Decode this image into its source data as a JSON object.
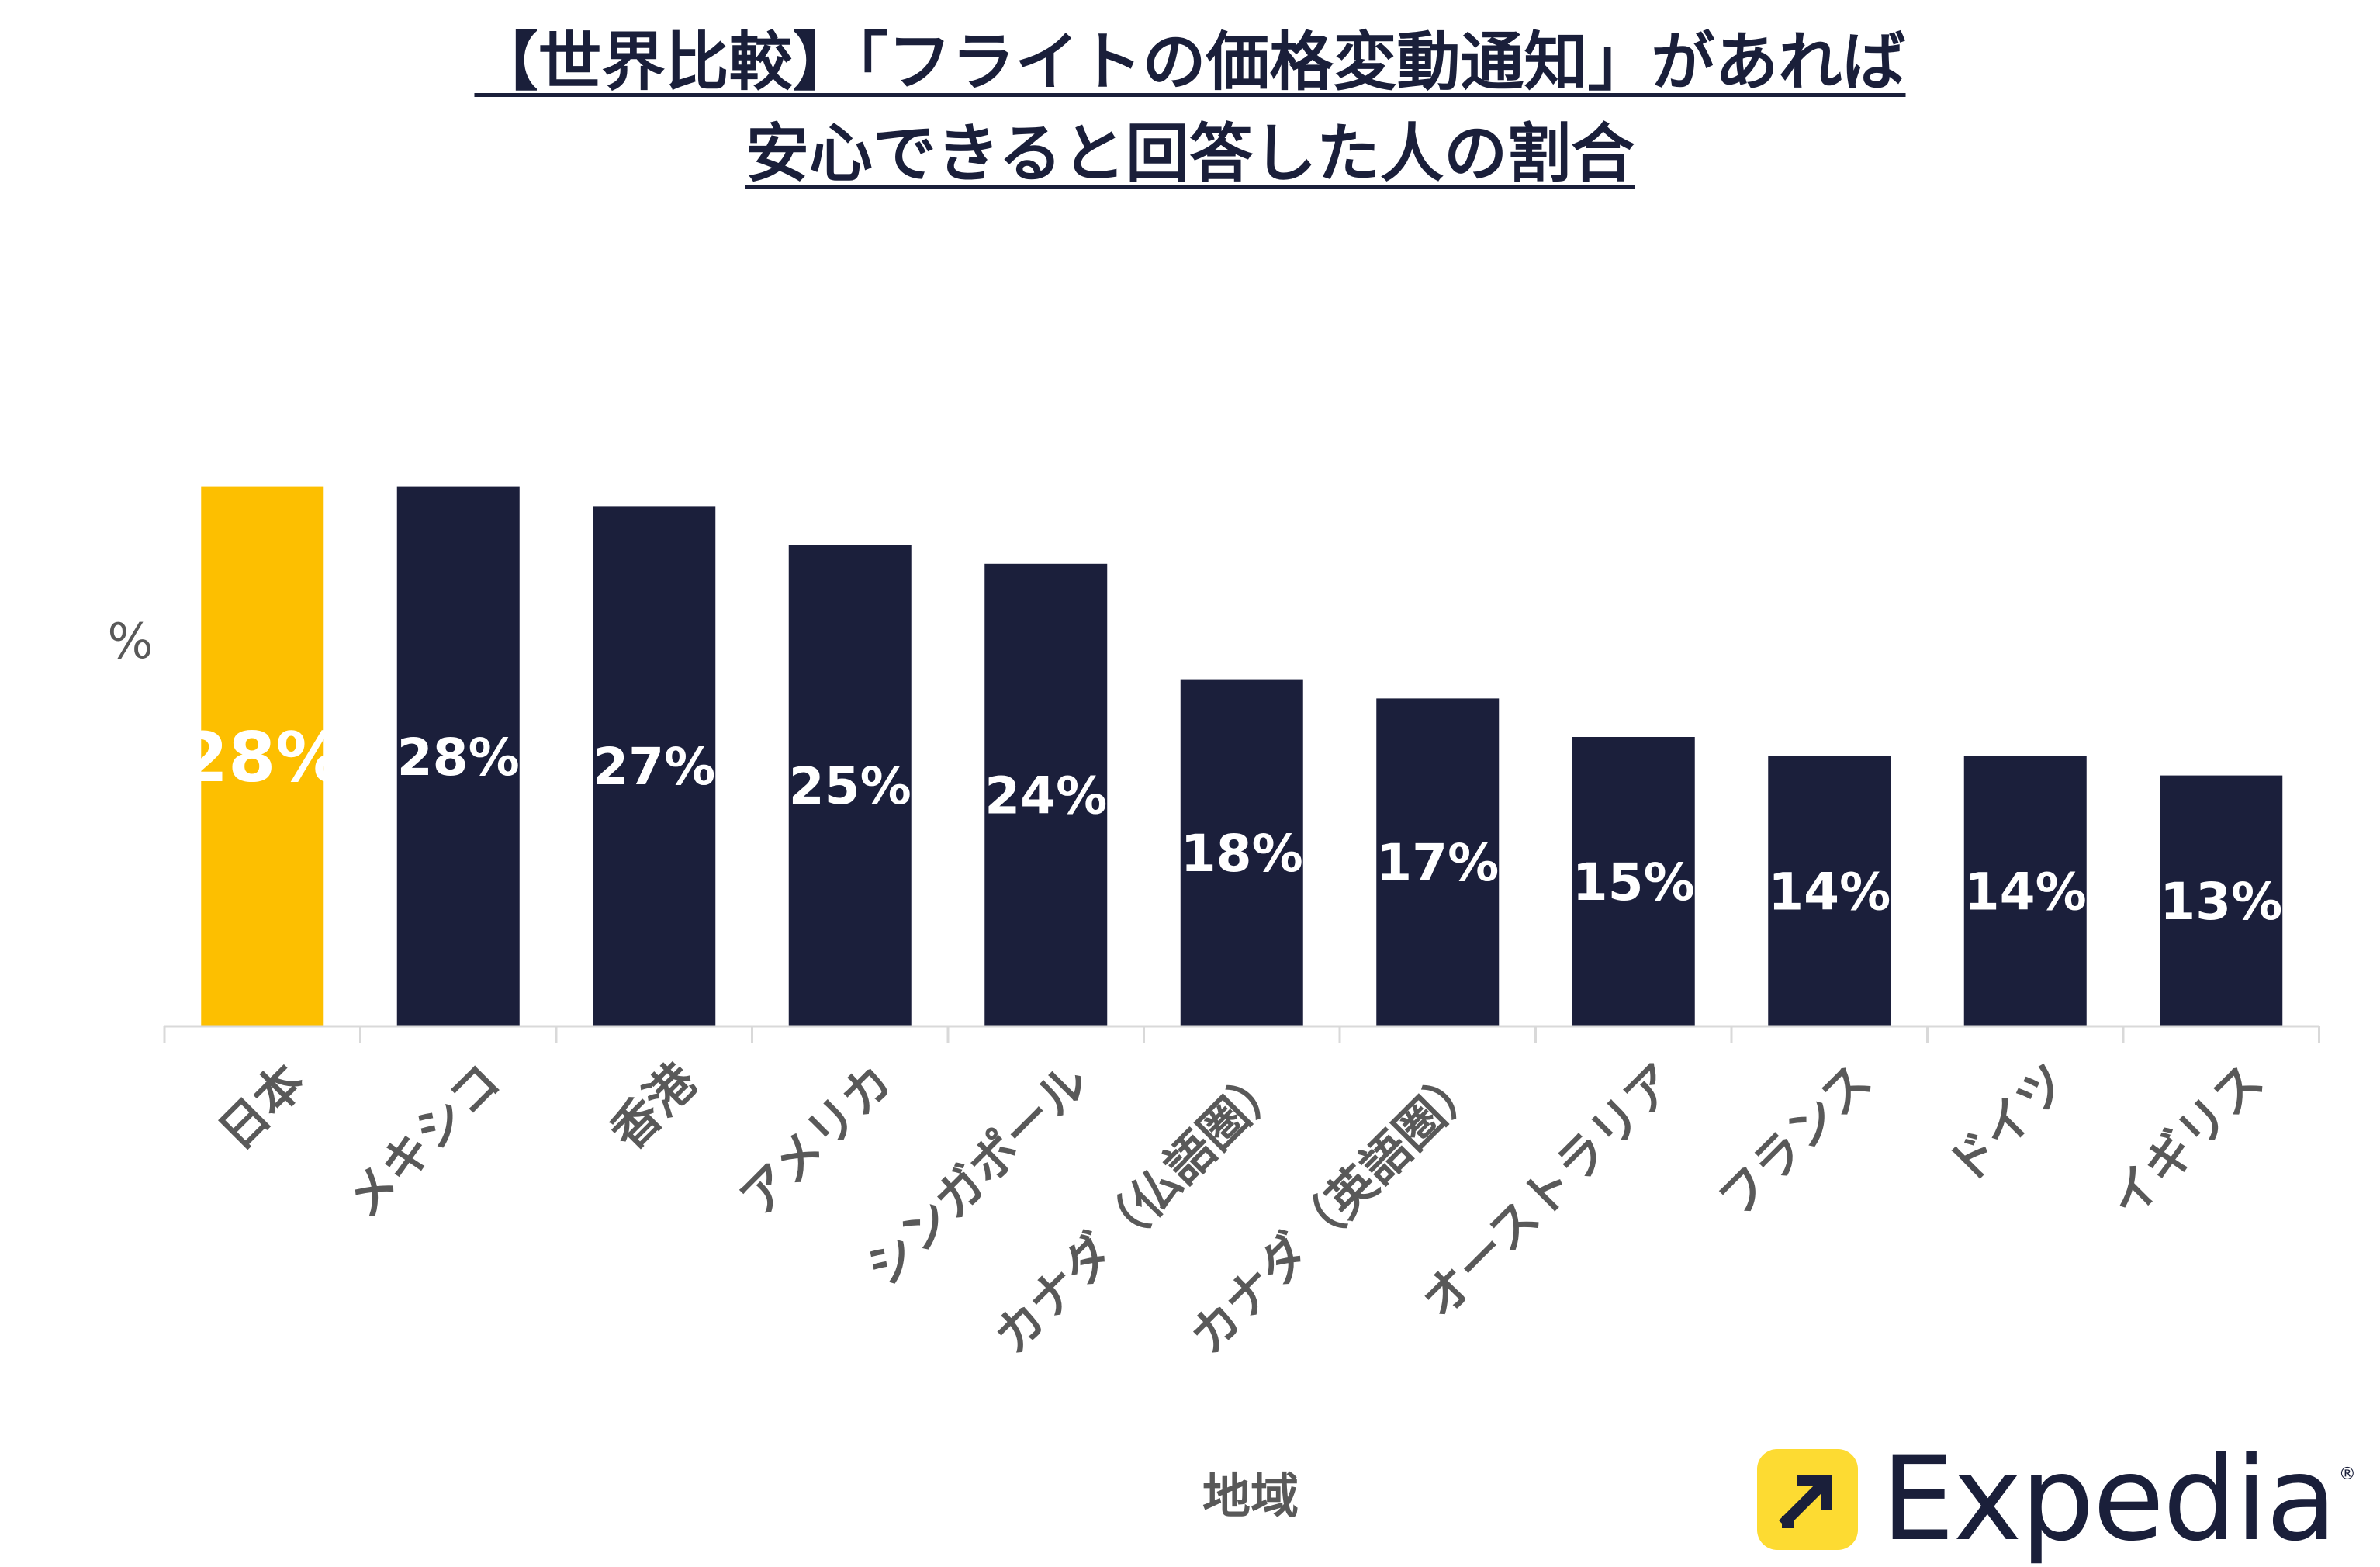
{
  "title": {
    "line1": "【世界比較】「フライトの価格変動通知」があれば",
    "line2": "安心できると回答した人の割合"
  },
  "chart_data": {
    "type": "bar",
    "categories": [
      "日本",
      "メキシコ",
      "香港",
      "アメリカ",
      "シンガポール",
      "カナダ（仏語圏）",
      "カナダ（英語圏）",
      "オーストラリア",
      "フランス",
      "ドイツ",
      "イギリス"
    ],
    "values": [
      28,
      28,
      27,
      25,
      24,
      18,
      17,
      15,
      14,
      14,
      13
    ],
    "data_labels": [
      "28%",
      "28%",
      "27%",
      "25%",
      "24%",
      "18%",
      "17%",
      "15%",
      "14%",
      "14%",
      "13%"
    ],
    "xlabel": "地域",
    "ylabel": "%",
    "ylim": [
      0,
      56
    ],
    "grid": false,
    "legend": "none",
    "highlight_index": 0,
    "colors": {
      "highlight": "#fdbf00",
      "bar": "#1b1f3b",
      "axis": "#d9d9d9",
      "label_text": "#ffffff",
      "category_text": "#595959"
    }
  },
  "logo": {
    "text": "Expedia",
    "registered": "®",
    "icon": "arrow-up-right-icon",
    "colors": {
      "mark": "#fddb32",
      "text": "#1a1f3a"
    }
  }
}
